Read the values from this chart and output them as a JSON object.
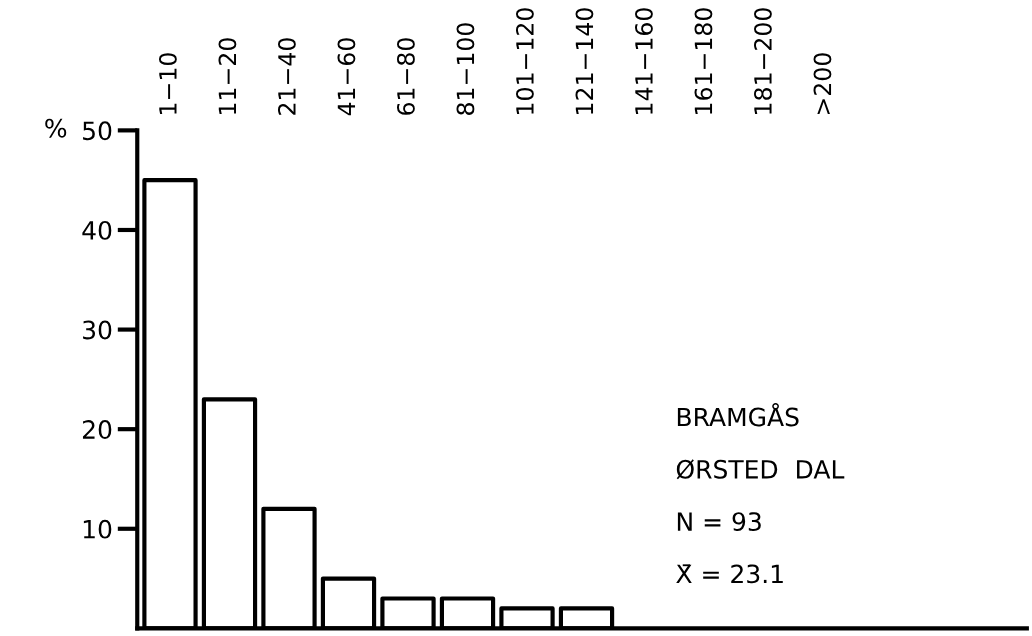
{
  "chart_data": {
    "type": "bar",
    "categories": [
      "1−10",
      "11−20",
      "21−40",
      "41−60",
      "61−80",
      "81−100",
      "101−120",
      "121−140",
      "141−160",
      "161−180",
      "181−200",
      ">200"
    ],
    "values": [
      45,
      23,
      12,
      5,
      3,
      3,
      2,
      2,
      0,
      0,
      0,
      0
    ],
    "color": "#ffffff",
    "ylabel": "%",
    "ylim": [
      0,
      50
    ],
    "yticks": [
      10,
      20,
      30,
      40,
      50
    ],
    "grid": false,
    "legend": false,
    "annotations": [
      "BRAMGÅS",
      "ØRSTED  DAL",
      "N = 93",
      "X̄ = 23.1"
    ]
  }
}
